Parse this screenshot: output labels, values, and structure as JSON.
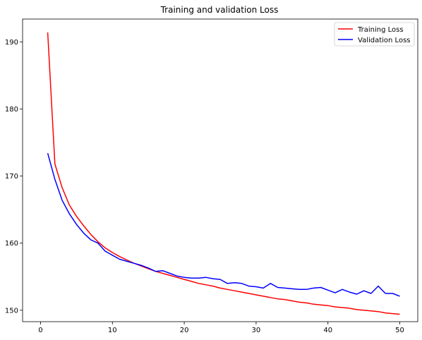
{
  "chart_data": {
    "type": "line",
    "title": "Training and validation Loss",
    "xlabel": "",
    "ylabel": "",
    "xlim": [
      -2.5,
      52.5
    ],
    "ylim": [
      148.3,
      193.4
    ],
    "xticks": [
      0,
      10,
      20,
      30,
      40,
      50
    ],
    "yticks": [
      150,
      160,
      170,
      180,
      190
    ],
    "grid": false,
    "legend_position": "upper right",
    "x": [
      1,
      2,
      3,
      4,
      5,
      6,
      7,
      8,
      9,
      10,
      11,
      12,
      13,
      14,
      15,
      16,
      17,
      18,
      19,
      20,
      21,
      22,
      23,
      24,
      25,
      26,
      27,
      28,
      29,
      30,
      31,
      32,
      33,
      34,
      35,
      36,
      37,
      38,
      39,
      40,
      41,
      42,
      43,
      44,
      45,
      46,
      47,
      48,
      49,
      50
    ],
    "series": [
      {
        "name": "Training Loss",
        "color": "#ff0000",
        "values": [
          191.4,
          171.8,
          168.3,
          165.7,
          164.0,
          162.6,
          161.3,
          160.2,
          159.3,
          158.6,
          158.0,
          157.5,
          157.0,
          156.6,
          156.2,
          155.8,
          155.5,
          155.2,
          154.9,
          154.6,
          154.3,
          154.0,
          153.8,
          153.6,
          153.3,
          153.1,
          152.9,
          152.7,
          152.5,
          152.3,
          152.1,
          151.9,
          151.7,
          151.6,
          151.4,
          151.2,
          151.1,
          150.9,
          150.8,
          150.7,
          150.5,
          150.4,
          150.3,
          150.1,
          150.0,
          149.9,
          149.8,
          149.6,
          149.5,
          149.4
        ]
      },
      {
        "name": "Validation Loss",
        "color": "#0000ff",
        "values": [
          173.4,
          169.5,
          166.4,
          164.4,
          162.8,
          161.5,
          160.5,
          160.0,
          158.8,
          158.2,
          157.6,
          157.3,
          157.0,
          156.7,
          156.3,
          155.8,
          155.9,
          155.5,
          155.1,
          154.9,
          154.8,
          154.8,
          154.9,
          154.7,
          154.6,
          154.0,
          154.1,
          154.0,
          153.6,
          153.5,
          153.3,
          154.0,
          153.4,
          153.3,
          153.2,
          153.1,
          153.1,
          153.3,
          153.4,
          153.0,
          152.6,
          153.1,
          152.7,
          152.4,
          152.9,
          152.5,
          153.6,
          152.5,
          152.5,
          152.1
        ]
      }
    ]
  }
}
